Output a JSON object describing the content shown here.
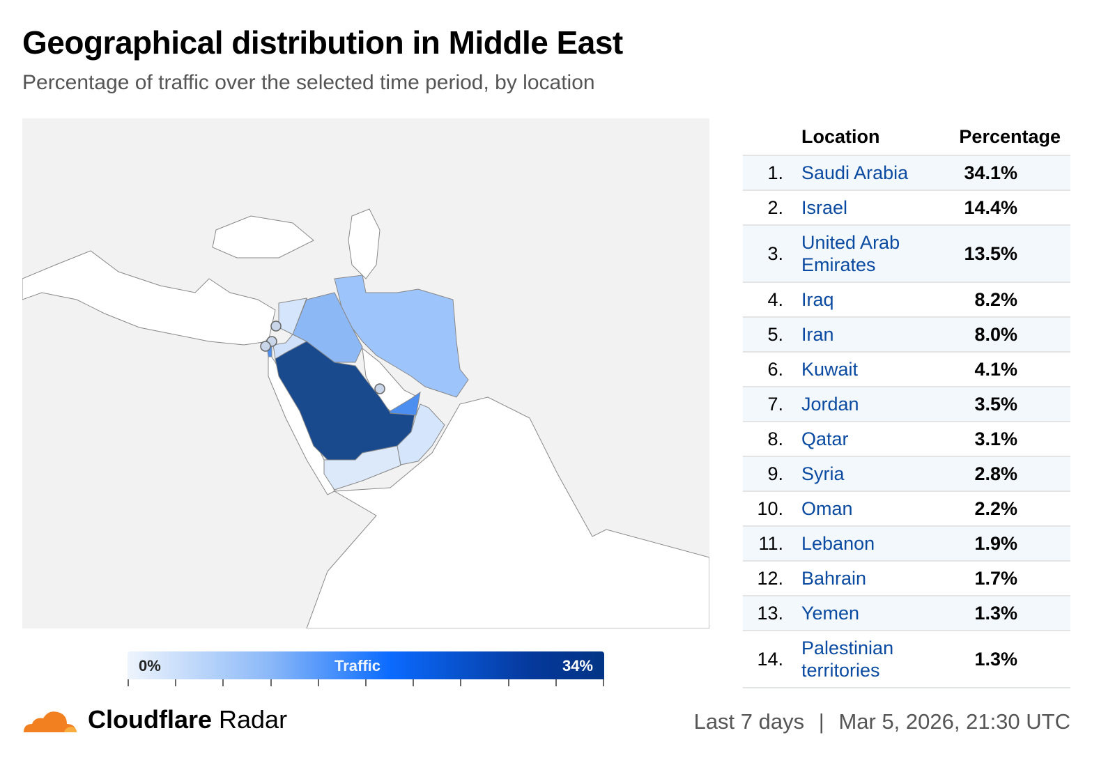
{
  "header": {
    "title": "Geographical distribution in Middle East",
    "subtitle": "Percentage of traffic over the selected time period, by location"
  },
  "table": {
    "col_location": "Location",
    "col_percentage": "Percentage",
    "rows": [
      {
        "rank": "1.",
        "location": "Saudi Arabia",
        "percentage": "34.1%"
      },
      {
        "rank": "2.",
        "location": "Israel",
        "percentage": "14.4%"
      },
      {
        "rank": "3.",
        "location": "United Arab Emirates",
        "percentage": "13.5%"
      },
      {
        "rank": "4.",
        "location": "Iraq",
        "percentage": "8.2%"
      },
      {
        "rank": "5.",
        "location": "Iran",
        "percentage": "8.0%"
      },
      {
        "rank": "6.",
        "location": "Kuwait",
        "percentage": "4.1%"
      },
      {
        "rank": "7.",
        "location": "Jordan",
        "percentage": "3.5%"
      },
      {
        "rank": "8.",
        "location": "Qatar",
        "percentage": "3.1%"
      },
      {
        "rank": "9.",
        "location": "Syria",
        "percentage": "2.8%"
      },
      {
        "rank": "10.",
        "location": "Oman",
        "percentage": "2.2%"
      },
      {
        "rank": "11.",
        "location": "Lebanon",
        "percentage": "1.9%"
      },
      {
        "rank": "12.",
        "location": "Bahrain",
        "percentage": "1.7%"
      },
      {
        "rank": "13.",
        "location": "Yemen",
        "percentage": "1.3%"
      },
      {
        "rank": "14.",
        "location": "Palestinian territories",
        "percentage": "1.3%"
      }
    ]
  },
  "legend": {
    "min": "0%",
    "label": "Traffic",
    "max": "34%",
    "color_low": "#eef4fc",
    "color_high": "#023585"
  },
  "footer": {
    "brand_bold": "Cloudflare",
    "brand_light": "Radar",
    "period": "Last 7 days",
    "separator": "|",
    "timestamp": "Mar 5, 2026, 21:30 UTC"
  },
  "colors": {
    "land": "#f2f2f2",
    "sea": "#ffffff",
    "brand": "#f38020"
  }
}
